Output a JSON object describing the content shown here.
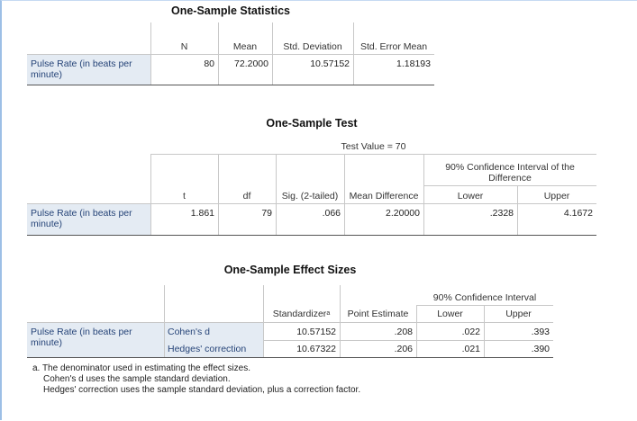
{
  "stats": {
    "title": "One-Sample Statistics",
    "headers": [
      "N",
      "Mean",
      "Std. Deviation",
      "Std. Error Mean"
    ],
    "rows": [
      [
        "Pulse Rate (in beats per minute)",
        "80",
        "72.2000",
        "10.57152",
        "1.18193"
      ]
    ]
  },
  "test": {
    "title": "One-Sample Test",
    "test_value": "Test Value = 70",
    "ci_header": "90% Confidence Interval of the Difference",
    "headers": [
      "t",
      "df",
      "Sig. (2-tailed)",
      "Mean Difference",
      "Lower",
      "Upper"
    ],
    "rows": [
      [
        "Pulse Rate (in beats per minute)",
        "1.861",
        "79",
        ".066",
        "2.20000",
        ".2328",
        "4.1672"
      ]
    ]
  },
  "effect": {
    "title": "One-Sample Effect Sizes",
    "ci_header": "90% Confidence Interval",
    "headers": [
      "Standardizer",
      "Point Estimate",
      "Lower",
      "Upper"
    ],
    "standardizer_note": "a",
    "row_label": "Pulse Rate (in beats per minute)",
    "rows": [
      [
        "Cohen's d",
        "10.57152",
        ".208",
        ".022",
        ".393"
      ],
      [
        "Hedges' correction",
        "10.67322",
        ".206",
        ".021",
        ".390"
      ]
    ]
  },
  "footnotes": [
    "a. The denominator used in estimating the effect sizes.",
    "Cohen's d uses the sample standard deviation.",
    "Hedges' correction uses the sample standard deviation, plus a correction factor."
  ]
}
